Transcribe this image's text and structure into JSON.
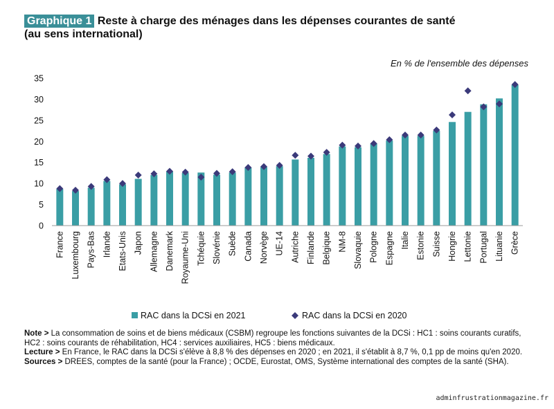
{
  "header": {
    "badge": "Graphique 1",
    "title_line1": "Reste à charge des ménages dans les dépenses courantes de santé",
    "title_line2": "(au sens international)"
  },
  "colors": {
    "bar": "#3a9ea5",
    "marker": "#3b3a7a",
    "badge": "#3a8f98"
  },
  "chart_data": {
    "type": "bar",
    "unit_label": "En % de l'ensemble des dépenses",
    "ylim": [
      0,
      35
    ],
    "yticks": [
      0,
      5,
      10,
      15,
      20,
      25,
      30,
      35
    ],
    "grid": false,
    "legend_position": "bottom",
    "categories": [
      "France",
      "Luxembourg",
      "Pays-Bas",
      "Irlande",
      "Etats-Unis",
      "Japon",
      "Allemagne",
      "Danemark",
      "Royaume-Uni",
      "Tchéquie",
      "Slovénie",
      "Suède",
      "Canada",
      "Norvège",
      "UE-14",
      "Autriche",
      "Finlande",
      "Belgique",
      "NM-8",
      "Slovaquie",
      "Pologne",
      "Espagne",
      "Italie",
      "Estonie",
      "Suisse",
      "Hongrie",
      "Lettonie",
      "Portugal",
      "Lituanie",
      "Grèce"
    ],
    "series": [
      {
        "name": "RAC dans la DCSi en 2021",
        "kind": "bar",
        "values": [
          8.7,
          8.2,
          9.0,
          10.6,
          9.8,
          11.1,
          12.0,
          12.9,
          12.5,
          12.6,
          12.1,
          12.6,
          13.8,
          13.9,
          14.1,
          15.7,
          16.1,
          17.0,
          18.8,
          18.6,
          19.5,
          20.2,
          21.3,
          21.3,
          22.5,
          24.6,
          27.0,
          28.8,
          30.2,
          33.4
        ]
      },
      {
        "name": "RAC dans la DCSi en 2020",
        "kind": "marker",
        "values": [
          8.8,
          8.4,
          9.3,
          10.9,
          10.0,
          12.0,
          12.3,
          12.9,
          12.7,
          11.5,
          12.4,
          12.8,
          13.8,
          14.0,
          14.3,
          16.7,
          16.5,
          17.4,
          19.1,
          18.9,
          19.5,
          20.4,
          21.5,
          21.5,
          22.7,
          26.3,
          32.0,
          28.2,
          28.9,
          33.5
        ]
      }
    ]
  },
  "notes": {
    "note_label": "Note >",
    "note_text": " La consommation de soins et de biens médicaux (CSBM) regroupe les fonctions suivantes de la DCSi : HC1 : soins courants curatifs, HC2 : soins courants de réhabilitation, HC4 : services auxiliaires, HC5 : biens médicaux.",
    "lecture_label": "Lecture >",
    "lecture_text": " En France, le RAC dans la DCSi s'élève à 8,8 % des dépenses en 2020 ; en 2021, il s'établit à 8,7 %, 0,1 pp de moins qu'en 2020.",
    "sources_label": "Sources >",
    "sources_text": " DREES, comptes de la santé (pour la France) ; OCDE, Eurostat, OMS, Système international des comptes de la santé (SHA)."
  },
  "watermark": "adminfrustrationmagazine.fr"
}
